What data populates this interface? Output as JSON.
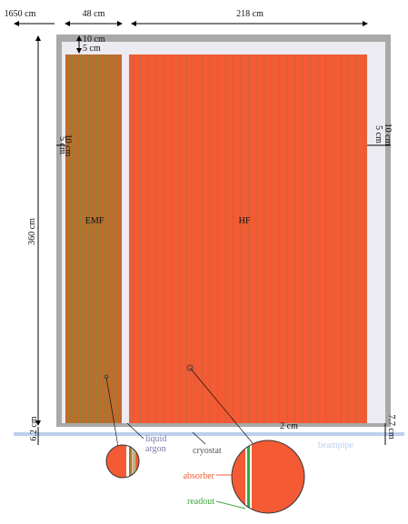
{
  "dimensions": {
    "offset": "1650 cm",
    "emf_width": "48 cm",
    "hf_width": "218 cm",
    "top_gap_outer": "10 cm",
    "top_gap_inner": "5 cm",
    "left_gap_inner": "5 cm",
    "left_gap_outer": "10 cm",
    "right_gap_inner": "5 cm",
    "right_gap_outer": "10 cm",
    "height": "360 cm",
    "bottom_left": "6.2 cm",
    "bottom_gap": "2 cm",
    "bottom_right": "7.7 cm"
  },
  "blocks": {
    "emf": "EMF",
    "hf": "HF"
  },
  "labels": {
    "liquid": "liquid",
    "argon": "argon",
    "cryostat": "cryostat",
    "beampipe": "beampipe",
    "absorber": "absorber",
    "readout": "readout"
  }
}
